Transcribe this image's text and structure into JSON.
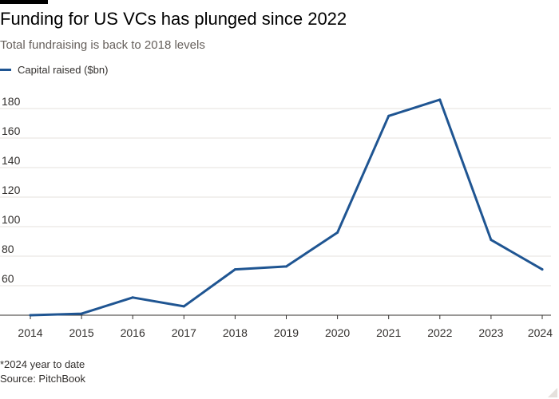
{
  "header": {
    "title": "Funding for US VCs has plunged since 2022",
    "subtitle": "Total fundraising is back to 2018 levels"
  },
  "footer": {
    "footnote": "*2024 year to date",
    "source": "Source: PitchBook"
  },
  "colors": {
    "series": "#1f5592",
    "grid": "#e6e2de",
    "axis": "#33302e",
    "tick_text": "#33302e"
  },
  "chart_data": {
    "type": "line",
    "title": "Funding for US VCs has plunged since 2022",
    "subtitle": "Total fundraising is back to 2018 levels",
    "x": [
      "2014",
      "2015",
      "2016",
      "2017",
      "2018",
      "2019",
      "2020",
      "2021",
      "2022",
      "2023",
      "2024"
    ],
    "series": [
      {
        "name": "Capital raised ($bn)",
        "values": [
          40,
          41,
          52,
          46,
          71,
          73,
          96,
          175,
          186,
          91,
          71
        ]
      }
    ],
    "yticks": [
      60,
      80,
      100,
      120,
      140,
      160,
      180
    ],
    "ylim": [
      38,
      192
    ],
    "xlabel": "",
    "ylabel": "",
    "grid": true,
    "legend": "top-left"
  }
}
